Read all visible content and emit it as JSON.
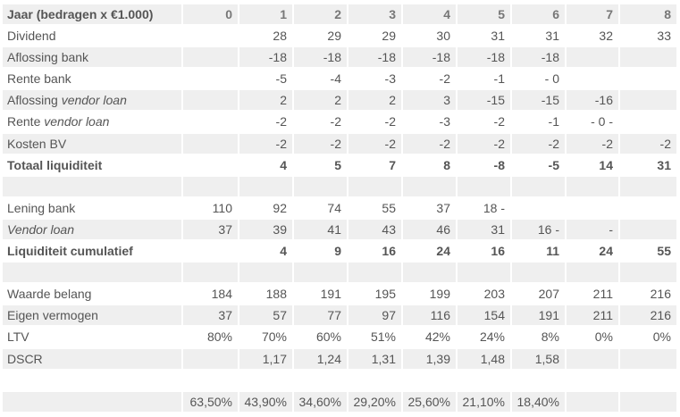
{
  "table": {
    "rows": [
      {
        "label": [
          "Jaar (bedragen x €1.000)"
        ],
        "italic": [
          false
        ],
        "cells": [
          "0",
          "1",
          "2",
          "3",
          "4",
          "5",
          "6",
          "7",
          "8"
        ],
        "shade": true,
        "bold": true
      },
      {
        "label": [
          "Dividend"
        ],
        "italic": [
          false
        ],
        "cells": [
          "",
          "28",
          "29",
          "29",
          "30",
          "31",
          "31",
          "32",
          "33"
        ],
        "shade": false,
        "bold": false
      },
      {
        "label": [
          "Aflossing bank"
        ],
        "italic": [
          false
        ],
        "cells": [
          "",
          "-18",
          "-18",
          "-18",
          "-18",
          "-18",
          "-18",
          "",
          ""
        ],
        "shade": true,
        "bold": false
      },
      {
        "label": [
          "Rente bank"
        ],
        "italic": [
          false
        ],
        "cells": [
          "",
          "-5",
          "-4",
          "-3",
          "-2",
          "-1",
          "- 0",
          "",
          ""
        ],
        "shade": false,
        "bold": false
      },
      {
        "label": [
          "Aflossing ",
          "vendor loan"
        ],
        "italic": [
          false,
          true
        ],
        "cells": [
          "",
          "2",
          "2",
          "2",
          "3",
          "-15",
          "-15",
          "-16",
          ""
        ],
        "shade": true,
        "bold": false
      },
      {
        "label": [
          "Rente ",
          "vendor loan"
        ],
        "italic": [
          false,
          true
        ],
        "cells": [
          "",
          "-2",
          "-2",
          "-2",
          "-3",
          "-2",
          "-1",
          "- 0 -",
          ""
        ],
        "shade": false,
        "bold": false
      },
      {
        "label": [
          "Kosten BV"
        ],
        "italic": [
          false
        ],
        "cells": [
          "",
          "-2",
          "-2",
          "-2",
          "-2",
          "-2",
          "-2",
          "-2",
          "-2"
        ],
        "shade": true,
        "bold": false
      },
      {
        "label": [
          "Totaal liquiditeit"
        ],
        "italic": [
          false
        ],
        "cells": [
          "",
          "4",
          "5",
          "7",
          "8",
          "-8",
          "-5",
          "14",
          "31"
        ],
        "shade": false,
        "bold": true
      },
      {
        "label": [
          ""
        ],
        "italic": [
          false
        ],
        "cells": [
          "",
          "",
          "",
          "",
          "",
          "",
          "",
          "",
          ""
        ],
        "shade": true,
        "bold": false
      },
      {
        "label": [
          "Lening bank"
        ],
        "italic": [
          false
        ],
        "cells": [
          "110",
          "92",
          "74",
          "55",
          "37",
          "18 -",
          "",
          "",
          ""
        ],
        "shade": false,
        "bold": false
      },
      {
        "label": [
          "Vendor loan"
        ],
        "italic": [
          true
        ],
        "cells": [
          "37",
          "39",
          "41",
          "43",
          "46",
          "31",
          "16 -",
          "-",
          ""
        ],
        "shade": true,
        "bold": false
      },
      {
        "label": [
          "Liquiditeit cumulatief"
        ],
        "italic": [
          false
        ],
        "cells": [
          "",
          "4",
          "9",
          "16",
          "24",
          "16",
          "11",
          "24",
          "55"
        ],
        "shade": false,
        "bold": true
      },
      {
        "label": [
          ""
        ],
        "italic": [
          false
        ],
        "cells": [
          "",
          "",
          "",
          "",
          "",
          "",
          "",
          "",
          ""
        ],
        "shade": true,
        "bold": false
      },
      {
        "label": [
          "Waarde belang"
        ],
        "italic": [
          false
        ],
        "cells": [
          "184",
          "188",
          "191",
          "195",
          "199",
          "203",
          "207",
          "211",
          "216"
        ],
        "shade": false,
        "bold": false
      },
      {
        "label": [
          "Eigen vermogen"
        ],
        "italic": [
          false
        ],
        "cells": [
          "37",
          "57",
          "77",
          "97",
          "116",
          "154",
          "191",
          "211",
          "216"
        ],
        "shade": true,
        "bold": false
      },
      {
        "label": [
          "LTV"
        ],
        "italic": [
          false
        ],
        "cells": [
          "80%",
          "70%",
          "60%",
          "51%",
          "42%",
          "24%",
          "8%",
          "0%",
          "0%"
        ],
        "shade": false,
        "bold": false
      },
      {
        "label": [
          "DSCR"
        ],
        "italic": [
          false
        ],
        "cells": [
          "",
          "1,17",
          "1,24",
          "1,31",
          "1,39",
          "1,48",
          "1,58",
          "",
          ""
        ],
        "shade": true,
        "bold": false
      },
      {
        "label": [
          ""
        ],
        "italic": [
          false
        ],
        "cells": [
          "",
          "",
          "",
          "",
          "",
          "",
          "",
          "",
          ""
        ],
        "shade": false,
        "bold": false
      },
      {
        "label": [
          ""
        ],
        "italic": [
          false
        ],
        "cells": [
          "63,50%",
          "43,90%",
          "34,60%",
          "29,20%",
          "25,60%",
          "21,10%",
          "18,40%",
          "",
          ""
        ],
        "shade": true,
        "bold": false
      }
    ]
  }
}
